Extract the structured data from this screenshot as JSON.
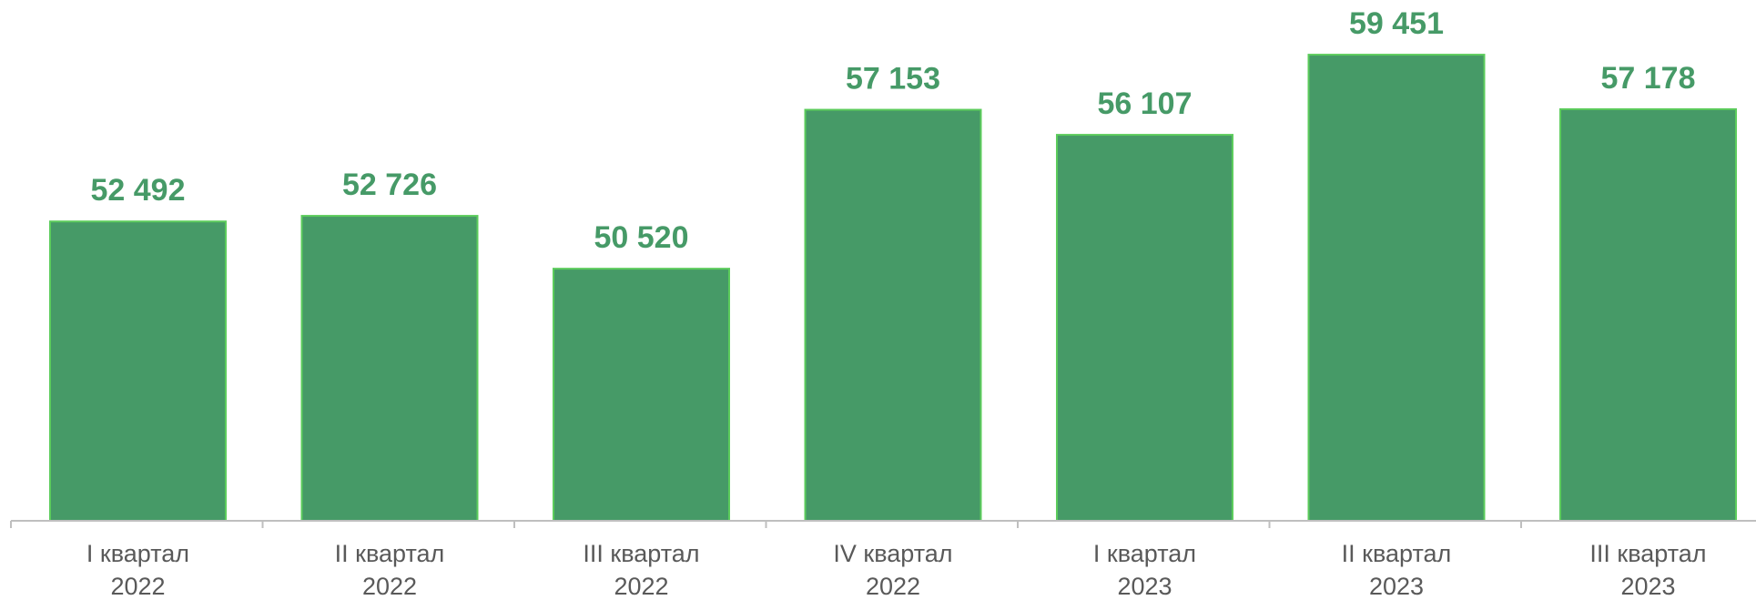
{
  "chart_data": {
    "type": "bar",
    "categories": [
      [
        "I квартал",
        "2022"
      ],
      [
        "II квартал",
        "2022"
      ],
      [
        "III квартал",
        "2022"
      ],
      [
        "IV квартал",
        "2022"
      ],
      [
        "I квартал",
        "2023"
      ],
      [
        "II квартал",
        "2023"
      ],
      [
        "III квартал",
        "2023"
      ]
    ],
    "values": [
      52492,
      52726,
      50520,
      57153,
      56107,
      59451,
      57178
    ],
    "value_labels": [
      "52 492",
      "52 726",
      "50 520",
      "57 153",
      "56 107",
      "59 451",
      "57 178"
    ],
    "color": "#469a67",
    "ylim": [
      40000,
      62000
    ]
  }
}
